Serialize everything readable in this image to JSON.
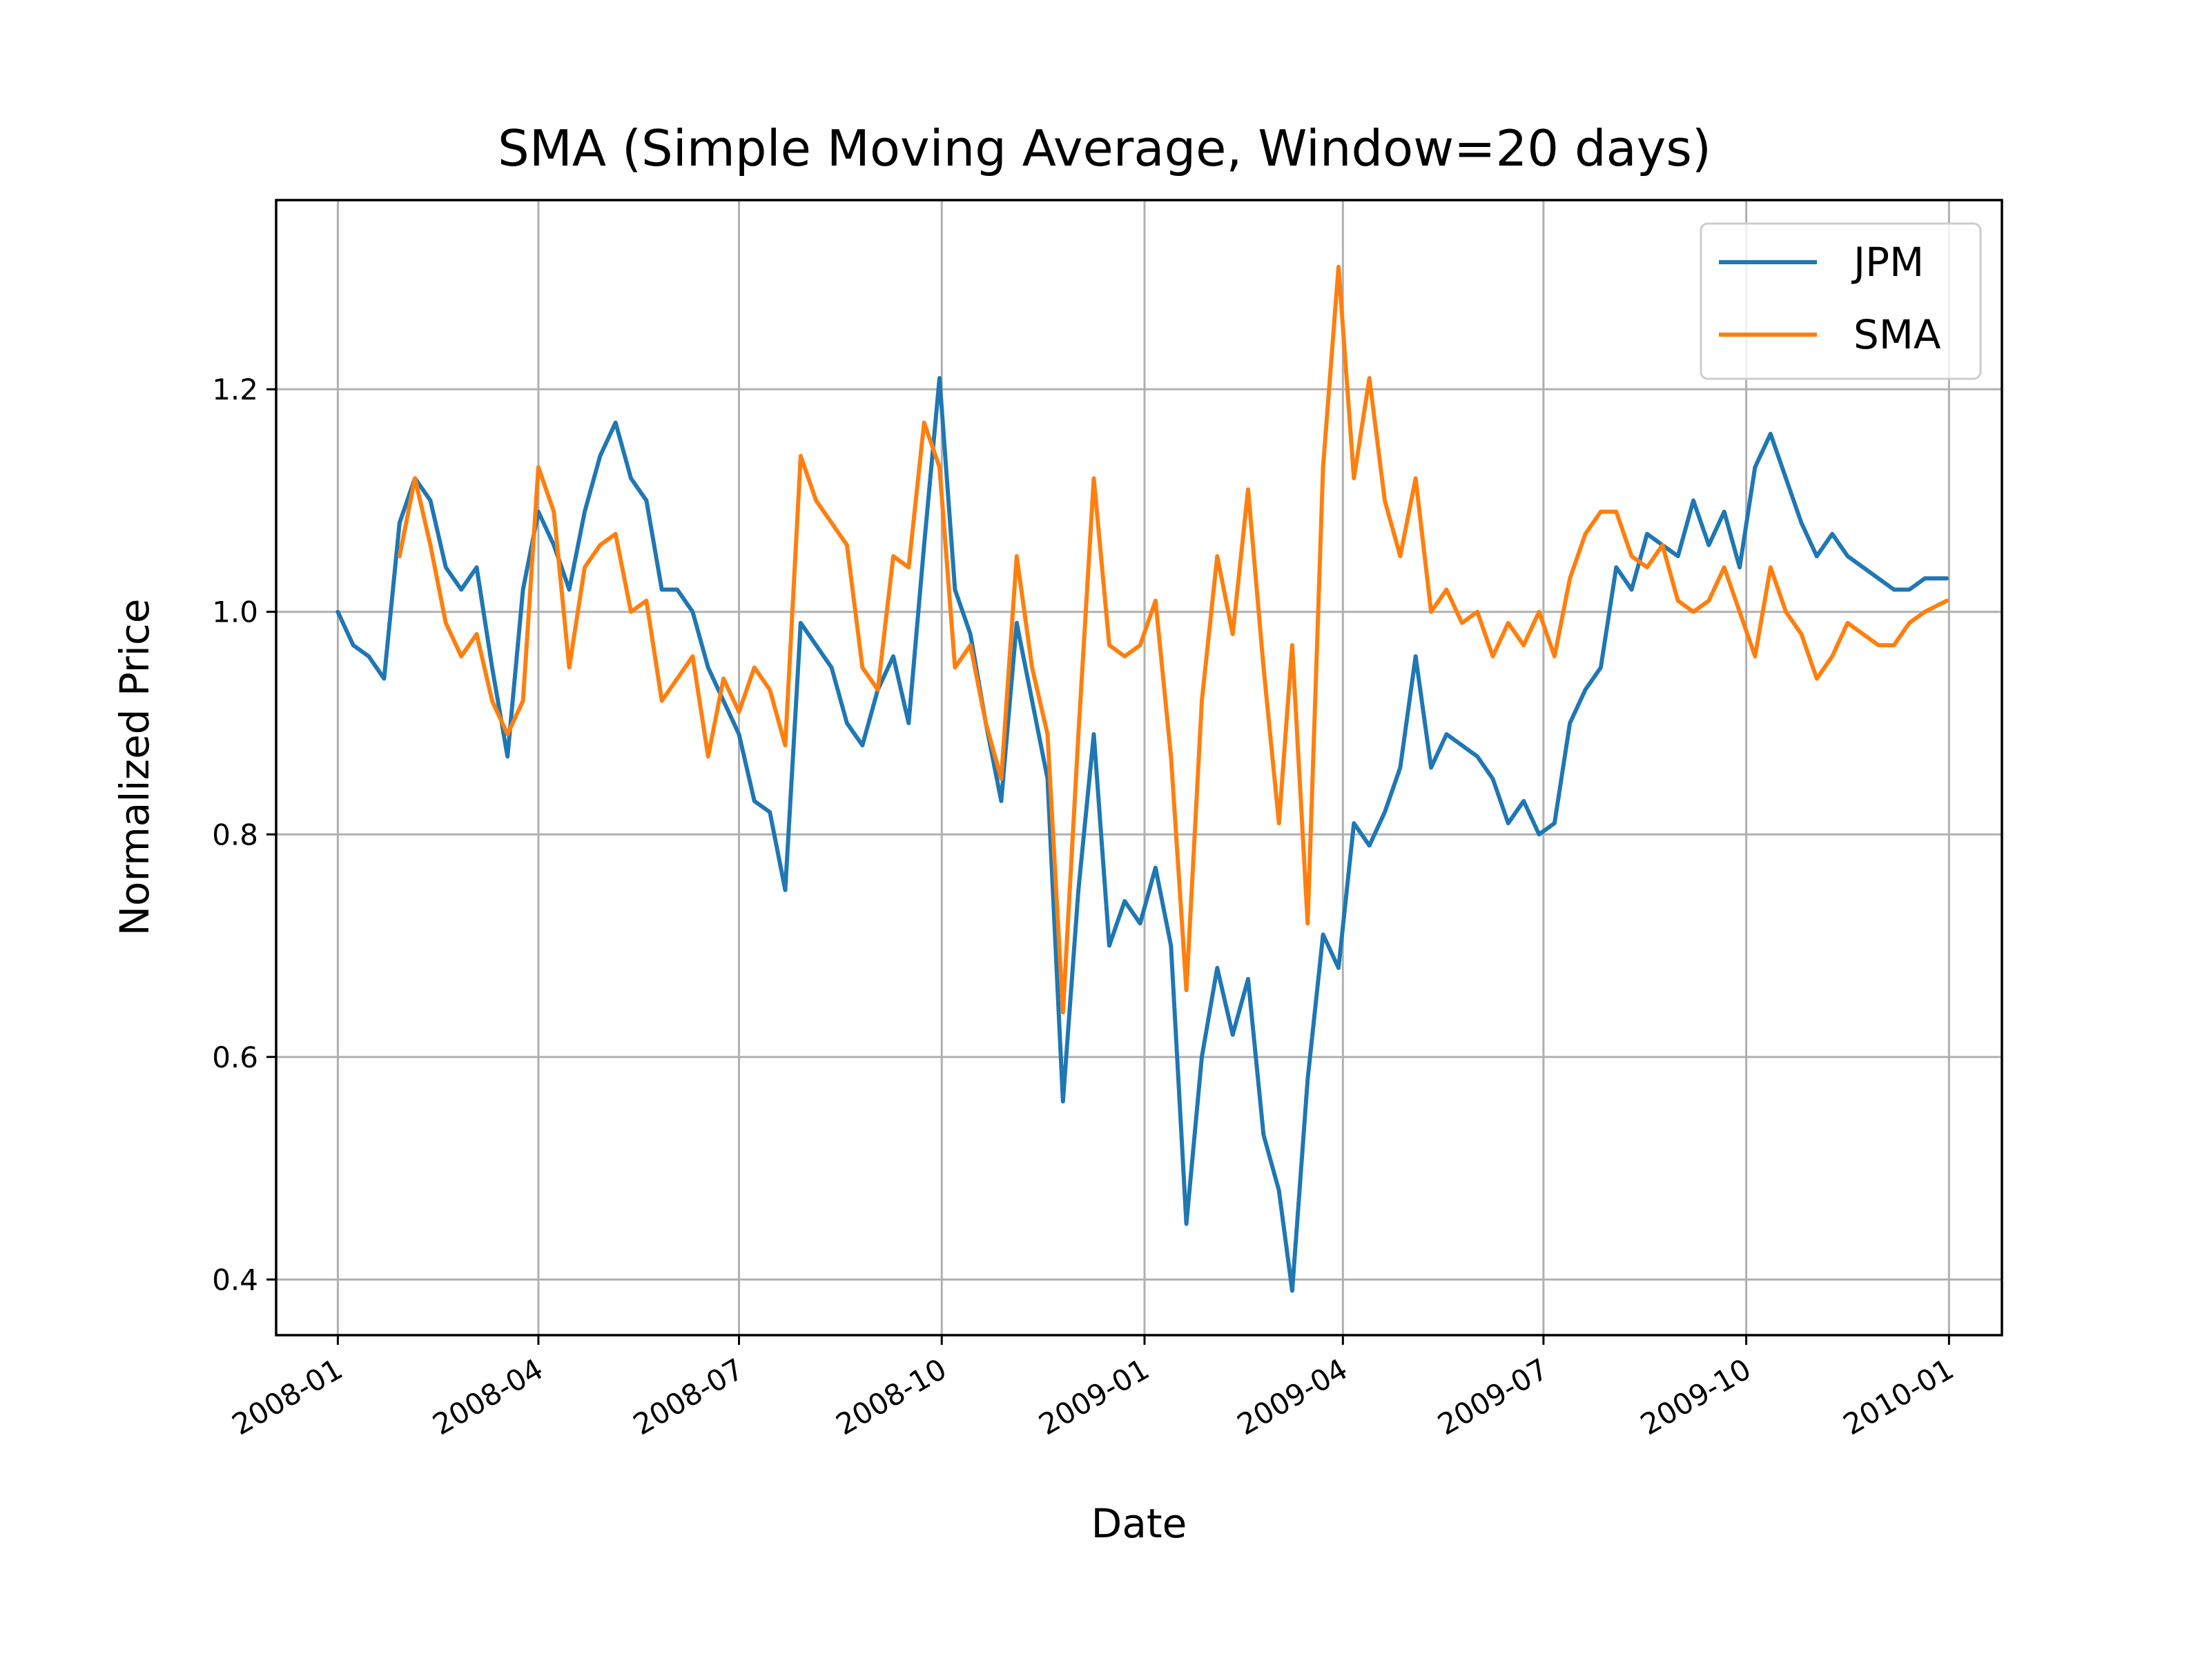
{
  "chart_data": {
    "type": "line",
    "title": "SMA (Simple Moving Average, Window=20 days)",
    "xlabel": "Date",
    "ylabel": "Normalized Price",
    "x_axis": "date",
    "xlim": [
      "2007-12-04",
      "2010-01-25"
    ],
    "ylim": [
      0.35,
      1.37
    ],
    "x_ticks": [
      "2008-01-01",
      "2008-04-01",
      "2008-07-01",
      "2008-10-01",
      "2009-01-01",
      "2009-04-01",
      "2009-07-01",
      "2009-10-01",
      "2010-01-01"
    ],
    "x_tick_labels": [
      "2008-01",
      "2008-04",
      "2008-07",
      "2008-10",
      "2009-01",
      "2009-04",
      "2009-07",
      "2009-10",
      "2010-01"
    ],
    "y_ticks": [
      0.4,
      0.6,
      0.8,
      1.0,
      1.2
    ],
    "y_tick_labels": [
      "0.4",
      "0.6",
      "0.8",
      "1.0",
      "1.2"
    ],
    "grid": true,
    "legend_position": "top-right",
    "series": [
      {
        "name": "JPM",
        "color": "#1f77b4",
        "points": [
          [
            "2008-01-01",
            1.0
          ],
          [
            "2008-01-08",
            0.97
          ],
          [
            "2008-01-15",
            0.96
          ],
          [
            "2008-01-22",
            0.94
          ],
          [
            "2008-01-29",
            1.08
          ],
          [
            "2008-02-05",
            1.12
          ],
          [
            "2008-02-12",
            1.1
          ],
          [
            "2008-02-19",
            1.04
          ],
          [
            "2008-02-26",
            1.02
          ],
          [
            "2008-03-04",
            1.04
          ],
          [
            "2008-03-11",
            0.95
          ],
          [
            "2008-03-18",
            0.87
          ],
          [
            "2008-03-25",
            1.02
          ],
          [
            "2008-04-01",
            1.09
          ],
          [
            "2008-04-08",
            1.06
          ],
          [
            "2008-04-15",
            1.02
          ],
          [
            "2008-04-22",
            1.09
          ],
          [
            "2008-04-29",
            1.14
          ],
          [
            "2008-05-06",
            1.17
          ],
          [
            "2008-05-13",
            1.12
          ],
          [
            "2008-05-20",
            1.1
          ],
          [
            "2008-05-27",
            1.02
          ],
          [
            "2008-06-03",
            1.02
          ],
          [
            "2008-06-10",
            1.0
          ],
          [
            "2008-06-17",
            0.95
          ],
          [
            "2008-06-24",
            0.92
          ],
          [
            "2008-07-01",
            0.89
          ],
          [
            "2008-07-08",
            0.83
          ],
          [
            "2008-07-15",
            0.82
          ],
          [
            "2008-07-22",
            0.75
          ],
          [
            "2008-07-29",
            0.99
          ],
          [
            "2008-08-05",
            0.97
          ],
          [
            "2008-08-12",
            0.95
          ],
          [
            "2008-08-19",
            0.9
          ],
          [
            "2008-08-26",
            0.88
          ],
          [
            "2008-09-02",
            0.93
          ],
          [
            "2008-09-09",
            0.96
          ],
          [
            "2008-09-16",
            0.9
          ],
          [
            "2008-09-23",
            1.06
          ],
          [
            "2008-09-30",
            1.21
          ],
          [
            "2008-10-07",
            1.02
          ],
          [
            "2008-10-14",
            0.98
          ],
          [
            "2008-10-21",
            0.9
          ],
          [
            "2008-10-28",
            0.83
          ],
          [
            "2008-11-04",
            0.99
          ],
          [
            "2008-11-11",
            0.92
          ],
          [
            "2008-11-18",
            0.85
          ],
          [
            "2008-11-25",
            0.56
          ],
          [
            "2008-12-02",
            0.75
          ],
          [
            "2008-12-09",
            0.89
          ],
          [
            "2008-12-16",
            0.7
          ],
          [
            "2008-12-23",
            0.74
          ],
          [
            "2008-12-30",
            0.72
          ],
          [
            "2009-01-06",
            0.77
          ],
          [
            "2009-01-13",
            0.7
          ],
          [
            "2009-01-20",
            0.45
          ],
          [
            "2009-01-27",
            0.6
          ],
          [
            "2009-02-03",
            0.68
          ],
          [
            "2009-02-10",
            0.62
          ],
          [
            "2009-02-17",
            0.67
          ],
          [
            "2009-02-24",
            0.53
          ],
          [
            "2009-03-03",
            0.48
          ],
          [
            "2009-03-09",
            0.39
          ],
          [
            "2009-03-16",
            0.58
          ],
          [
            "2009-03-23",
            0.71
          ],
          [
            "2009-03-30",
            0.68
          ],
          [
            "2009-04-06",
            0.81
          ],
          [
            "2009-04-13",
            0.79
          ],
          [
            "2009-04-20",
            0.82
          ],
          [
            "2009-04-27",
            0.86
          ],
          [
            "2009-05-04",
            0.96
          ],
          [
            "2009-05-11",
            0.86
          ],
          [
            "2009-05-18",
            0.89
          ],
          [
            "2009-05-25",
            0.88
          ],
          [
            "2009-06-01",
            0.87
          ],
          [
            "2009-06-08",
            0.85
          ],
          [
            "2009-06-15",
            0.81
          ],
          [
            "2009-06-22",
            0.83
          ],
          [
            "2009-06-29",
            0.8
          ],
          [
            "2009-07-06",
            0.81
          ],
          [
            "2009-07-13",
            0.9
          ],
          [
            "2009-07-20",
            0.93
          ],
          [
            "2009-07-27",
            0.95
          ],
          [
            "2009-08-03",
            1.04
          ],
          [
            "2009-08-10",
            1.02
          ],
          [
            "2009-08-17",
            1.07
          ],
          [
            "2009-08-24",
            1.06
          ],
          [
            "2009-08-31",
            1.05
          ],
          [
            "2009-09-07",
            1.1
          ],
          [
            "2009-09-14",
            1.06
          ],
          [
            "2009-09-21",
            1.09
          ],
          [
            "2009-09-28",
            1.04
          ],
          [
            "2009-10-05",
            1.13
          ],
          [
            "2009-10-12",
            1.16
          ],
          [
            "2009-10-19",
            1.12
          ],
          [
            "2009-10-26",
            1.08
          ],
          [
            "2009-11-02",
            1.05
          ],
          [
            "2009-11-09",
            1.07
          ],
          [
            "2009-11-16",
            1.05
          ],
          [
            "2009-11-23",
            1.04
          ],
          [
            "2009-11-30",
            1.03
          ],
          [
            "2009-12-07",
            1.02
          ],
          [
            "2009-12-14",
            1.02
          ],
          [
            "2009-12-21",
            1.03
          ],
          [
            "2009-12-31",
            1.03
          ]
        ]
      },
      {
        "name": "SMA",
        "color": "#ff7f0e",
        "points": [
          [
            "2008-01-29",
            1.05
          ],
          [
            "2008-02-05",
            1.12
          ],
          [
            "2008-02-12",
            1.06
          ],
          [
            "2008-02-19",
            0.99
          ],
          [
            "2008-02-26",
            0.96
          ],
          [
            "2008-03-04",
            0.98
          ],
          [
            "2008-03-11",
            0.92
          ],
          [
            "2008-03-18",
            0.89
          ],
          [
            "2008-03-25",
            0.92
          ],
          [
            "2008-04-01",
            1.13
          ],
          [
            "2008-04-08",
            1.09
          ],
          [
            "2008-04-15",
            0.95
          ],
          [
            "2008-04-22",
            1.04
          ],
          [
            "2008-04-29",
            1.06
          ],
          [
            "2008-05-06",
            1.07
          ],
          [
            "2008-05-13",
            1.0
          ],
          [
            "2008-05-20",
            1.01
          ],
          [
            "2008-05-27",
            0.92
          ],
          [
            "2008-06-03",
            0.94
          ],
          [
            "2008-06-10",
            0.96
          ],
          [
            "2008-06-17",
            0.87
          ],
          [
            "2008-06-24",
            0.94
          ],
          [
            "2008-07-01",
            0.91
          ],
          [
            "2008-07-08",
            0.95
          ],
          [
            "2008-07-15",
            0.93
          ],
          [
            "2008-07-22",
            0.88
          ],
          [
            "2008-07-29",
            1.14
          ],
          [
            "2008-08-05",
            1.1
          ],
          [
            "2008-08-12",
            1.08
          ],
          [
            "2008-08-19",
            1.06
          ],
          [
            "2008-08-26",
            0.95
          ],
          [
            "2008-09-02",
            0.93
          ],
          [
            "2008-09-09",
            1.05
          ],
          [
            "2008-09-16",
            1.04
          ],
          [
            "2008-09-23",
            1.17
          ],
          [
            "2008-09-30",
            1.13
          ],
          [
            "2008-10-07",
            0.95
          ],
          [
            "2008-10-14",
            0.97
          ],
          [
            "2008-10-21",
            0.9
          ],
          [
            "2008-10-28",
            0.85
          ],
          [
            "2008-11-04",
            1.05
          ],
          [
            "2008-11-11",
            0.95
          ],
          [
            "2008-11-18",
            0.89
          ],
          [
            "2008-11-25",
            0.64
          ],
          [
            "2008-12-02",
            0.89
          ],
          [
            "2008-12-09",
            1.12
          ],
          [
            "2008-12-16",
            0.97
          ],
          [
            "2008-12-23",
            0.96
          ],
          [
            "2008-12-30",
            0.97
          ],
          [
            "2009-01-06",
            1.01
          ],
          [
            "2009-01-13",
            0.87
          ],
          [
            "2009-01-20",
            0.66
          ],
          [
            "2009-01-27",
            0.92
          ],
          [
            "2009-02-03",
            1.05
          ],
          [
            "2009-02-10",
            0.98
          ],
          [
            "2009-02-17",
            1.11
          ],
          [
            "2009-02-24",
            0.95
          ],
          [
            "2009-03-03",
            0.81
          ],
          [
            "2009-03-09",
            0.97
          ],
          [
            "2009-03-16",
            0.72
          ],
          [
            "2009-03-23",
            1.13
          ],
          [
            "2009-03-30",
            1.31
          ],
          [
            "2009-04-06",
            1.12
          ],
          [
            "2009-04-13",
            1.21
          ],
          [
            "2009-04-20",
            1.1
          ],
          [
            "2009-04-27",
            1.05
          ],
          [
            "2009-05-04",
            1.12
          ],
          [
            "2009-05-11",
            1.0
          ],
          [
            "2009-05-18",
            1.02
          ],
          [
            "2009-05-25",
            0.99
          ],
          [
            "2009-06-01",
            1.0
          ],
          [
            "2009-06-08",
            0.96
          ],
          [
            "2009-06-15",
            0.99
          ],
          [
            "2009-06-22",
            0.97
          ],
          [
            "2009-06-29",
            1.0
          ],
          [
            "2009-07-06",
            0.96
          ],
          [
            "2009-07-13",
            1.03
          ],
          [
            "2009-07-20",
            1.07
          ],
          [
            "2009-07-27",
            1.09
          ],
          [
            "2009-08-03",
            1.09
          ],
          [
            "2009-08-10",
            1.05
          ],
          [
            "2009-08-17",
            1.04
          ],
          [
            "2009-08-24",
            1.06
          ],
          [
            "2009-08-31",
            1.01
          ],
          [
            "2009-09-07",
            1.0
          ],
          [
            "2009-09-14",
            1.01
          ],
          [
            "2009-09-21",
            1.04
          ],
          [
            "2009-09-28",
            1.0
          ],
          [
            "2009-10-05",
            0.96
          ],
          [
            "2009-10-12",
            1.04
          ],
          [
            "2009-10-19",
            1.0
          ],
          [
            "2009-10-26",
            0.98
          ],
          [
            "2009-11-02",
            0.94
          ],
          [
            "2009-11-09",
            0.96
          ],
          [
            "2009-11-16",
            0.99
          ],
          [
            "2009-11-23",
            0.98
          ],
          [
            "2009-11-30",
            0.97
          ],
          [
            "2009-12-07",
            0.97
          ],
          [
            "2009-12-14",
            0.99
          ],
          [
            "2009-12-21",
            1.0
          ],
          [
            "2009-12-31",
            1.01
          ]
        ]
      }
    ]
  }
}
